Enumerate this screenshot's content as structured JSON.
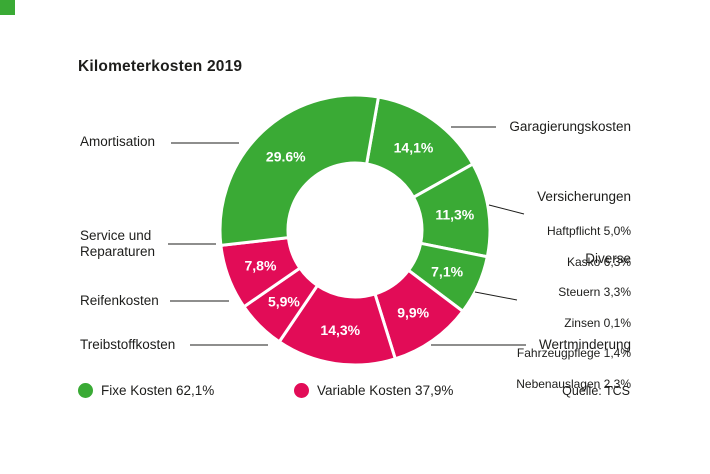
{
  "brand": {
    "corner_color": "#3aaa35"
  },
  "chart_data": {
    "type": "pie",
    "subtype": "donut",
    "title": "Kilometerkosten 2019",
    "rotation_deg": 10,
    "direction": "clockwise",
    "colors": {
      "fixed": "#3aaa35",
      "variable": "#e20c57"
    },
    "slices": [
      {
        "name": "Garagierungskosten",
        "value": 14.1,
        "display": "14,1%",
        "group": "fixed"
      },
      {
        "name": "Versicherungen",
        "value": 11.3,
        "display": "11,3%",
        "group": "fixed"
      },
      {
        "name": "Diverse",
        "value": 7.1,
        "display": "7,1%",
        "group": "fixed"
      },
      {
        "name": "Wertminderung",
        "value": 9.9,
        "display": "9,9%",
        "group": "variable"
      },
      {
        "name": "Treibstoffkosten",
        "value": 14.3,
        "display": "14,3%",
        "group": "variable"
      },
      {
        "name": "Reifenkosten",
        "value": 5.9,
        "display": "5,9%",
        "group": "variable"
      },
      {
        "name": "Service und Reparaturen",
        "value": 7.8,
        "display": "7,8%",
        "group": "variable"
      },
      {
        "name": "Amortisation",
        "value": 29.6,
        "display": "29.6%",
        "group": "fixed"
      }
    ],
    "legend": [
      {
        "label": "Fixe Kosten 62,1%",
        "group": "fixed"
      },
      {
        "label": "Variable Kosten 37,9%",
        "group": "variable"
      }
    ],
    "source": "Quelle: TCS"
  },
  "callouts": {
    "left": {
      "amortisation": "Amortisation",
      "service": "Service und\nReparaturen",
      "reifen": "Reifenkosten",
      "treibstoff": "Treibstoffkosten"
    },
    "right": {
      "garagierung": "Garagierungskosten",
      "versicherungen": {
        "heading": "Versicherungen",
        "sub": [
          "Haftpflicht 5,0%",
          "Kasko 6,3%"
        ]
      },
      "diverse": {
        "heading": "Diverse",
        "sub": [
          "Steuern 3,3%",
          "Zinsen 0,1%",
          "Fahrzeugpflege 1,4%",
          "Nebenauslagen 2,3%"
        ]
      },
      "wertminderung": "Wertminderung"
    }
  }
}
